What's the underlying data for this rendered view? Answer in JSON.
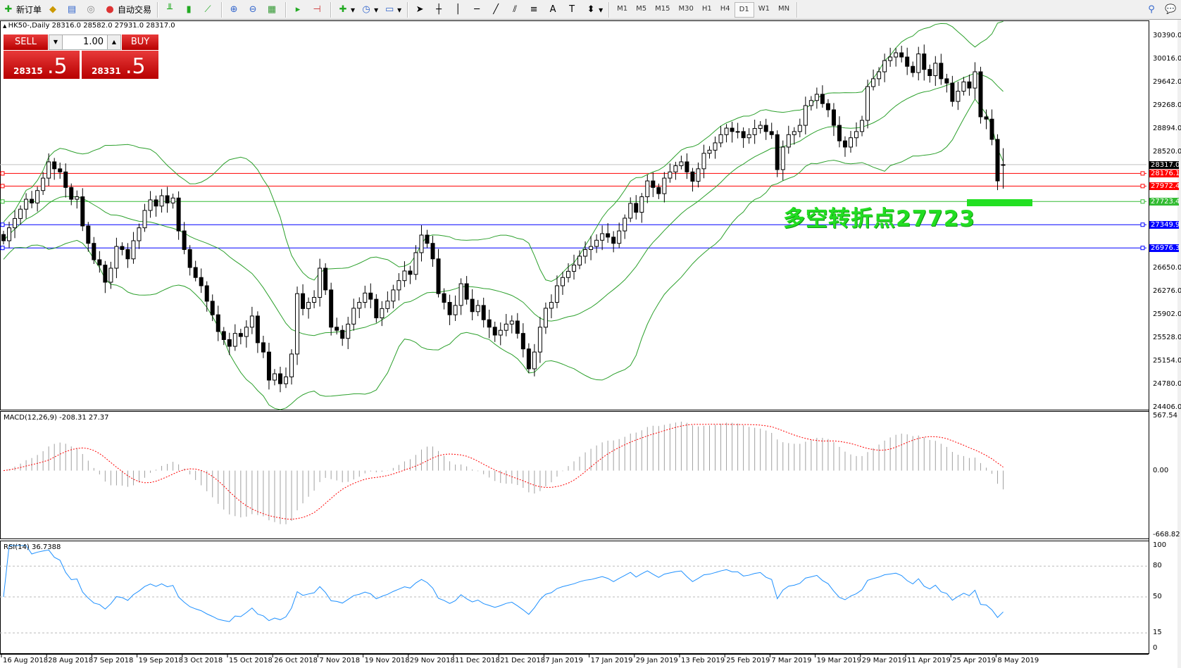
{
  "toolbar": {
    "new_order": "新订单",
    "auto_trading": "自动交易",
    "timeframes": [
      "M1",
      "M5",
      "M15",
      "M30",
      "H1",
      "H4",
      "D1",
      "W1",
      "MN"
    ],
    "active_timeframe": "D1",
    "icons": [
      "new-order-icon",
      "market-watch-icon",
      "data-window-icon",
      "signals-icon",
      "auto-trading-icon",
      "bar-chart-icon",
      "candlestick-icon",
      "line-chart-icon",
      "zoom-in-icon",
      "zoom-out-icon",
      "tile-windows-icon",
      "auto-scroll-icon",
      "chart-shift-icon",
      "indicators-icon",
      "periods-icon",
      "templates-icon",
      "cursor-icon",
      "crosshair-icon",
      "vertical-line-icon",
      "horizontal-line-icon",
      "trendline-icon",
      "equidistant-channel-icon",
      "fibonacci-icon",
      "text-icon",
      "text-label-icon",
      "arrows-icon",
      "search-icon",
      "chat-icon"
    ]
  },
  "symbol_info": "HK50-,Daily  28316.0 28582.0 27931.0 28317.0",
  "trade_panel": {
    "sell_label": "SELL",
    "buy_label": "BUY",
    "lot": "1.00",
    "sell_price_main": "28315",
    "sell_price_big": ".5",
    "buy_price_main": "28331",
    "buy_price_big": ".5"
  },
  "annotation": "多空转折点27723",
  "chart_data": {
    "type": "candlestick",
    "symbol": "HK50-",
    "period": "Daily",
    "last_bar": {
      "open": 28316.0,
      "high": 28582.0,
      "low": 27931.0,
      "close": 28317.0
    },
    "closes": [
      27092,
      27300,
      27450,
      27600,
      27760,
      27700,
      27900,
      28100,
      28362,
      28250,
      28200,
      27950,
      27760,
      27800,
      27330,
      27050,
      26786,
      26700,
      26424,
      26650,
      27000,
      26950,
      26800,
      27092,
      27300,
      27580,
      27750,
      27650,
      27817,
      27700,
      27780,
      27250,
      26950,
      26661,
      26500,
      26367,
      26118,
      25900,
      25630,
      25500,
      25392,
      25600,
      25550,
      25700,
      25880,
      25450,
      25300,
      24848,
      24950,
      24790,
      24900,
      25268,
      26240,
      26000,
      26100,
      26180,
      26650,
      26300,
      25700,
      25650,
      25520,
      25750,
      26005,
      26100,
      26250,
      26150,
      25850,
      26000,
      26120,
      26300,
      26450,
      26605,
      26550,
      26900,
      27183,
      27050,
      26800,
      26240,
      26100,
      25900,
      26050,
      26400,
      26150,
      25950,
      26050,
      25820,
      25700,
      25573,
      25650,
      25750,
      25800,
      25600,
      25350,
      25030,
      25300,
      25700,
      26005,
      26100,
      26367,
      26500,
      26600,
      26700,
      26843,
      26950,
      27000,
      27100,
      27206,
      27150,
      27050,
      27250,
      27455,
      27693,
      27550,
      27800,
      28055,
      27950,
      27850,
      28100,
      28200,
      28300,
      28362,
      28200,
      28050,
      28250,
      28500,
      28550,
      28668,
      28800,
      28905,
      28850,
      28850,
      28750,
      28800,
      28900,
      28950,
      28850,
      28800,
      28237,
      28600,
      28800,
      28850,
      28950,
      29268,
      29350,
      29450,
      29300,
      29200,
      28950,
      28700,
      28600,
      28750,
      28850,
      29030,
      29574,
      29700,
      29812,
      29993,
      30050,
      30118,
      30050,
      29900,
      29800,
      30100,
      29850,
      29750,
      29950,
      29700,
      29630,
      29335,
      29500,
      29650,
      29550,
      29812,
      29087,
      29050,
      28724,
      28055,
      28317
    ],
    "price_axis": {
      "max": 30390.0,
      "min": 24406.0,
      "ticks": [
        "30390.0",
        "30016.0",
        "29642.0",
        "29268.0",
        "28894.0",
        "28520.0",
        "26650.0",
        "26276.0",
        "25902.0",
        "25528.0",
        "25154.0",
        "24780.0",
        "24406.0"
      ]
    },
    "levels": [
      {
        "value": "28317.0",
        "color": "#000000",
        "line": "#c0c0c0"
      },
      {
        "value": "28176.1",
        "color": "#ff0000",
        "line": "#ff0000"
      },
      {
        "value": "27972.4",
        "color": "#ff0000",
        "line": "#ff0000"
      },
      {
        "value": "27723.4",
        "color": "#33bb33",
        "line": "#33bb33"
      },
      {
        "value": "27349.9",
        "color": "#0000ff",
        "line": "#0000ff"
      },
      {
        "value": "26976.3",
        "color": "#0000ff",
        "line": "#0000ff"
      }
    ],
    "bollinger": {
      "period": 20,
      "deviation": 2,
      "color": "#2ca02c"
    },
    "macd": {
      "label": "MACD(12,26,9) -208.31 27.37",
      "max": "567.54",
      "zero": "0.00",
      "min": "-668.82",
      "hist_color": "#a0a0a0",
      "signal_color": "#ff0000"
    },
    "rsi": {
      "label": "RSI(14) 36.7388",
      "levels": [
        "100",
        "80",
        "50",
        "15",
        "0"
      ],
      "color": "#1e90ff"
    },
    "dates": [
      "16 Aug 2018",
      "28 Aug 2018",
      "7 Sep 2018",
      "19 Sep 2018",
      "3 Oct 2018",
      "15 Oct 2018",
      "26 Oct 2018",
      "7 Nov 2018",
      "19 Nov 2018",
      "29 Nov 2018",
      "11 Dec 2018",
      "21 Dec 2018",
      "7 Jan 2019",
      "17 Jan 2019",
      "29 Jan 2019",
      "13 Feb 2019",
      "25 Feb 2019",
      "7 Mar 2019",
      "19 Mar 2019",
      "29 Mar 2019",
      "11 Apr 2019",
      "25 Apr 2019",
      "8 May 2019"
    ]
  }
}
